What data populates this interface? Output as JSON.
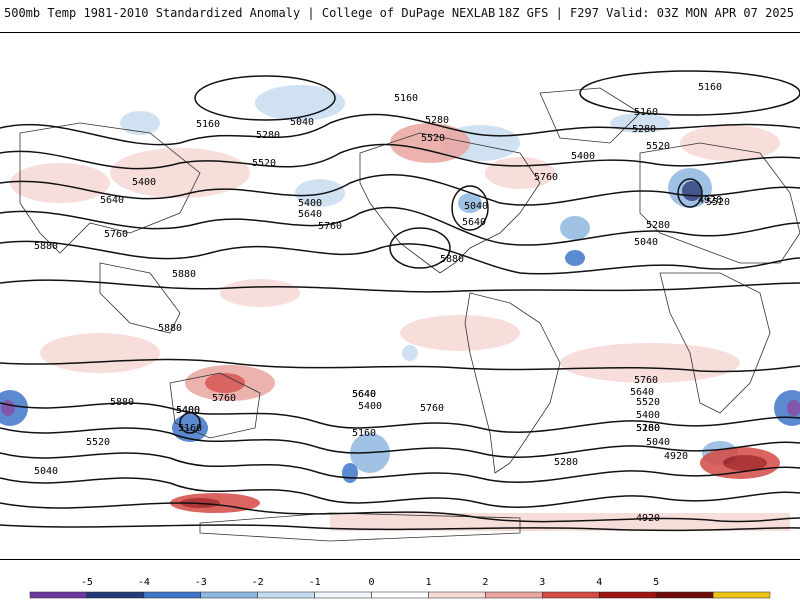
{
  "header": {
    "left_title": "500mb Temp 1981-2010 Standardized Anomaly | College of DuPage NEXLAB",
    "right_title": "18Z GFS | F297 Valid: 03Z MON APR 07 2025"
  },
  "map": {
    "contour_labels": [
      "5160",
      "5160",
      "5160",
      "5280",
      "5280",
      "5520",
      "5520",
      "5400",
      "5040",
      "5400",
      "5640",
      "5760",
      "5640",
      "5760",
      "5880",
      "5880",
      "5880",
      "5760",
      "5400",
      "5640",
      "5520",
      "5280",
      "5160",
      "5040",
      "4920",
      "5520",
      "5280",
      "5040",
      "5880",
      "5160",
      "5400",
      "5640",
      "5760",
      "5400",
      "5280",
      "5760",
      "5640",
      "5520",
      "5400",
      "5280",
      "5160",
      "5040",
      "4920",
      "4920",
      "5040",
      "5160",
      "5880",
      "5400",
      "5760",
      "5640",
      "5520"
    ]
  },
  "colorbar": {
    "ticks": [
      "-5",
      "-4",
      "-3",
      "-2",
      "-1",
      "0",
      "1",
      "2",
      "3",
      "4",
      "5"
    ],
    "colors": [
      "#6a3a9e",
      "#243a78",
      "#3f76c8",
      "#8fb8e0",
      "#c8dcf0",
      "#eef4fb",
      "#ffffff",
      "#f6d8d5",
      "#e9a5a0",
      "#d44a44",
      "#a11414",
      "#6e0c0c",
      "#f0c419"
    ]
  }
}
